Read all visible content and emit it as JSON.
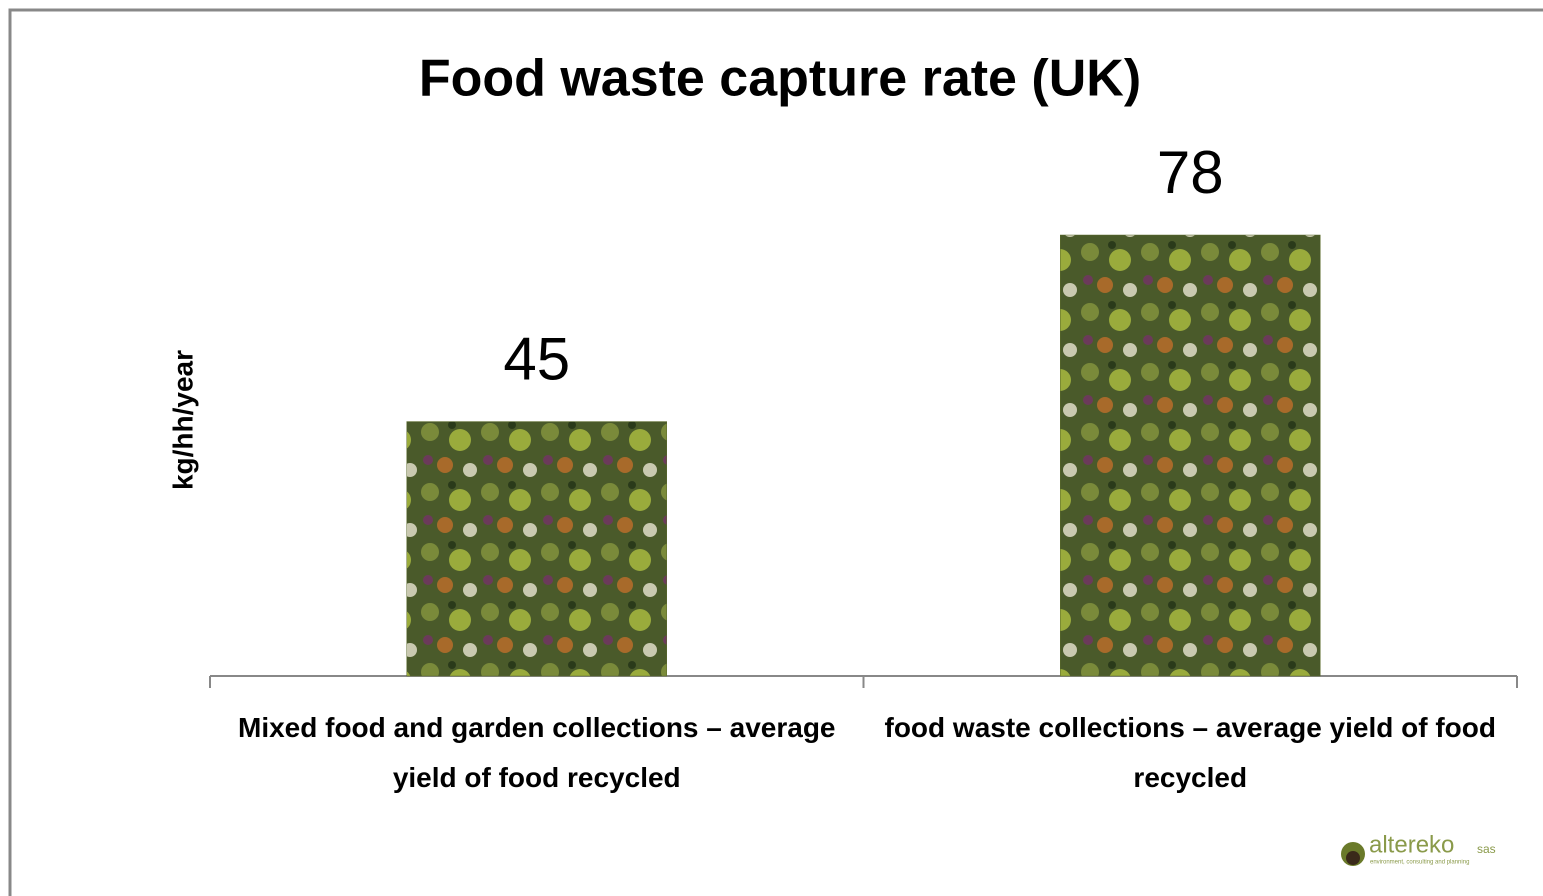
{
  "chart_data": {
    "type": "bar",
    "title": "Food waste capture rate (UK)",
    "y_label": "kg/hh/year",
    "categories": [
      "Mixed food and garden collections – average yield of food recycled",
      "food waste collections – average yield of food recycled"
    ],
    "values": [
      45,
      78
    ],
    "color": "#5a6a2a",
    "logo": {
      "name": "altereko",
      "suffix": "sas",
      "tagline": "environment, consulting and planning"
    }
  }
}
